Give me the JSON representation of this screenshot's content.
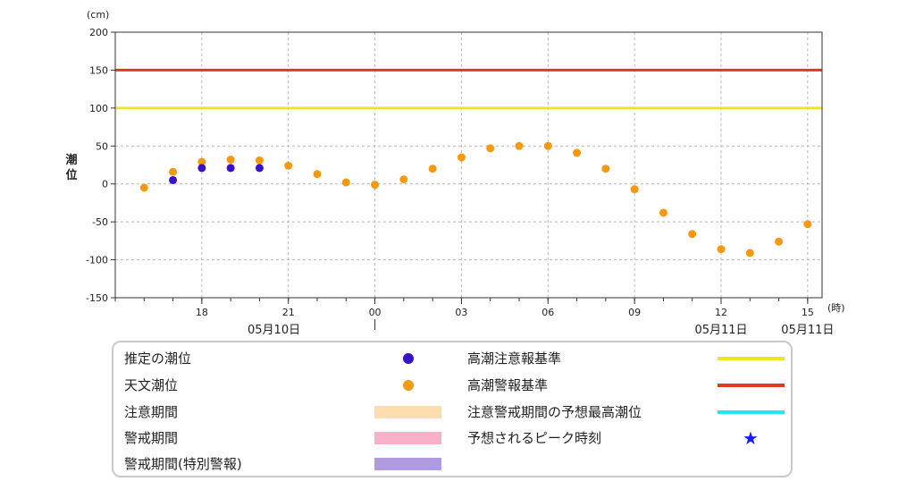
{
  "chart_data": {
    "type": "scatter",
    "y_unit": "(cm)",
    "x_unit": "(時)",
    "ylabel": "潮位",
    "ylim": [
      -150,
      200
    ],
    "yticks": [
      200,
      150,
      100,
      50,
      0,
      -50,
      -100,
      -150
    ],
    "x_hours_range": [
      15,
      39.5
    ],
    "x_ticks": [
      {
        "h": 18,
        "label": "18"
      },
      {
        "h": 21,
        "label": "21"
      },
      {
        "h": 24,
        "label": "00"
      },
      {
        "h": 27,
        "label": "03"
      },
      {
        "h": 30,
        "label": "06"
      },
      {
        "h": 33,
        "label": "09"
      },
      {
        "h": 36,
        "label": "12"
      },
      {
        "h": 39,
        "label": "15"
      }
    ],
    "date_labels": [
      {
        "h": 20.5,
        "label": "05月10日"
      },
      {
        "h": 36,
        "label": "05月11日"
      },
      {
        "h": 39,
        "label": "05月11日"
      }
    ],
    "grid": true,
    "reference_lines": [
      {
        "name": "高潮警報基準",
        "y": 150,
        "color": "#e03a1e"
      },
      {
        "name": "高潮注意報基準",
        "y": 100,
        "color": "#f0e61c"
      }
    ],
    "series": [
      {
        "name": "天文潮位",
        "color": "#f59a0e",
        "x": [
          "05月10日 16時",
          "05月10日 17時",
          "05月10日 18時",
          "05月10日 19時",
          "05月10日 20時",
          "05月10日 21時",
          "05月10日 22時",
          "05月10日 23時",
          "05月11日 00時",
          "05月11日 01時",
          "05月11日 02時",
          "05月11日 03時",
          "05月11日 04時",
          "05月11日 05時",
          "05月11日 06時",
          "05月11日 07時",
          "05月11日 08時",
          "05月11日 09時",
          "05月11日 10時",
          "05月11日 11時",
          "05月11日 12時",
          "05月11日 13時",
          "05月11日 14時",
          "05月11日 15時"
        ],
        "hours": [
          16,
          17,
          18,
          19,
          20,
          21,
          22,
          23,
          24,
          25,
          26,
          27,
          28,
          29,
          30,
          31,
          32,
          33,
          34,
          35,
          36,
          37,
          38,
          39
        ],
        "values": [
          -5,
          16,
          29,
          32,
          31,
          24,
          13,
          2,
          -1,
          6,
          20,
          35,
          47,
          50,
          50,
          41,
          20,
          -7,
          -38,
          -66,
          -86,
          -91,
          -76,
          -53
        ]
      },
      {
        "name": "推定の潮位",
        "color": "#3a10c8",
        "x": [
          "05月10日 17時",
          "05月10日 18時",
          "05月10日 19時",
          "05月10日 20時"
        ],
        "hours": [
          17,
          18,
          19,
          20
        ],
        "values": [
          5,
          21,
          21,
          21
        ]
      }
    ]
  },
  "legend": {
    "items": [
      {
        "label": "推定の潮位",
        "swatch": "dot",
        "color": "#3a10c8"
      },
      {
        "label": "天文潮位",
        "swatch": "dot",
        "color": "#f59a0e"
      },
      {
        "label": "注意期間",
        "swatch": "band",
        "color": "#fddcb0"
      },
      {
        "label": "警戒期間",
        "swatch": "band",
        "color": "#f8b0c8"
      },
      {
        "label": "警戒期間(特別警報)",
        "swatch": "band",
        "color": "#b09ae0"
      },
      {
        "label": "高潮注意報基準",
        "swatch": "line",
        "color": "#f0e61c"
      },
      {
        "label": "高潮警報基準",
        "swatch": "line",
        "color": "#e03a1e"
      },
      {
        "label": "注意警戒期間の予想最高潮位",
        "swatch": "line",
        "color": "#1ee8f0"
      },
      {
        "label": "予想されるピーク時刻",
        "swatch": "star",
        "color": "#1a1aff"
      }
    ]
  }
}
